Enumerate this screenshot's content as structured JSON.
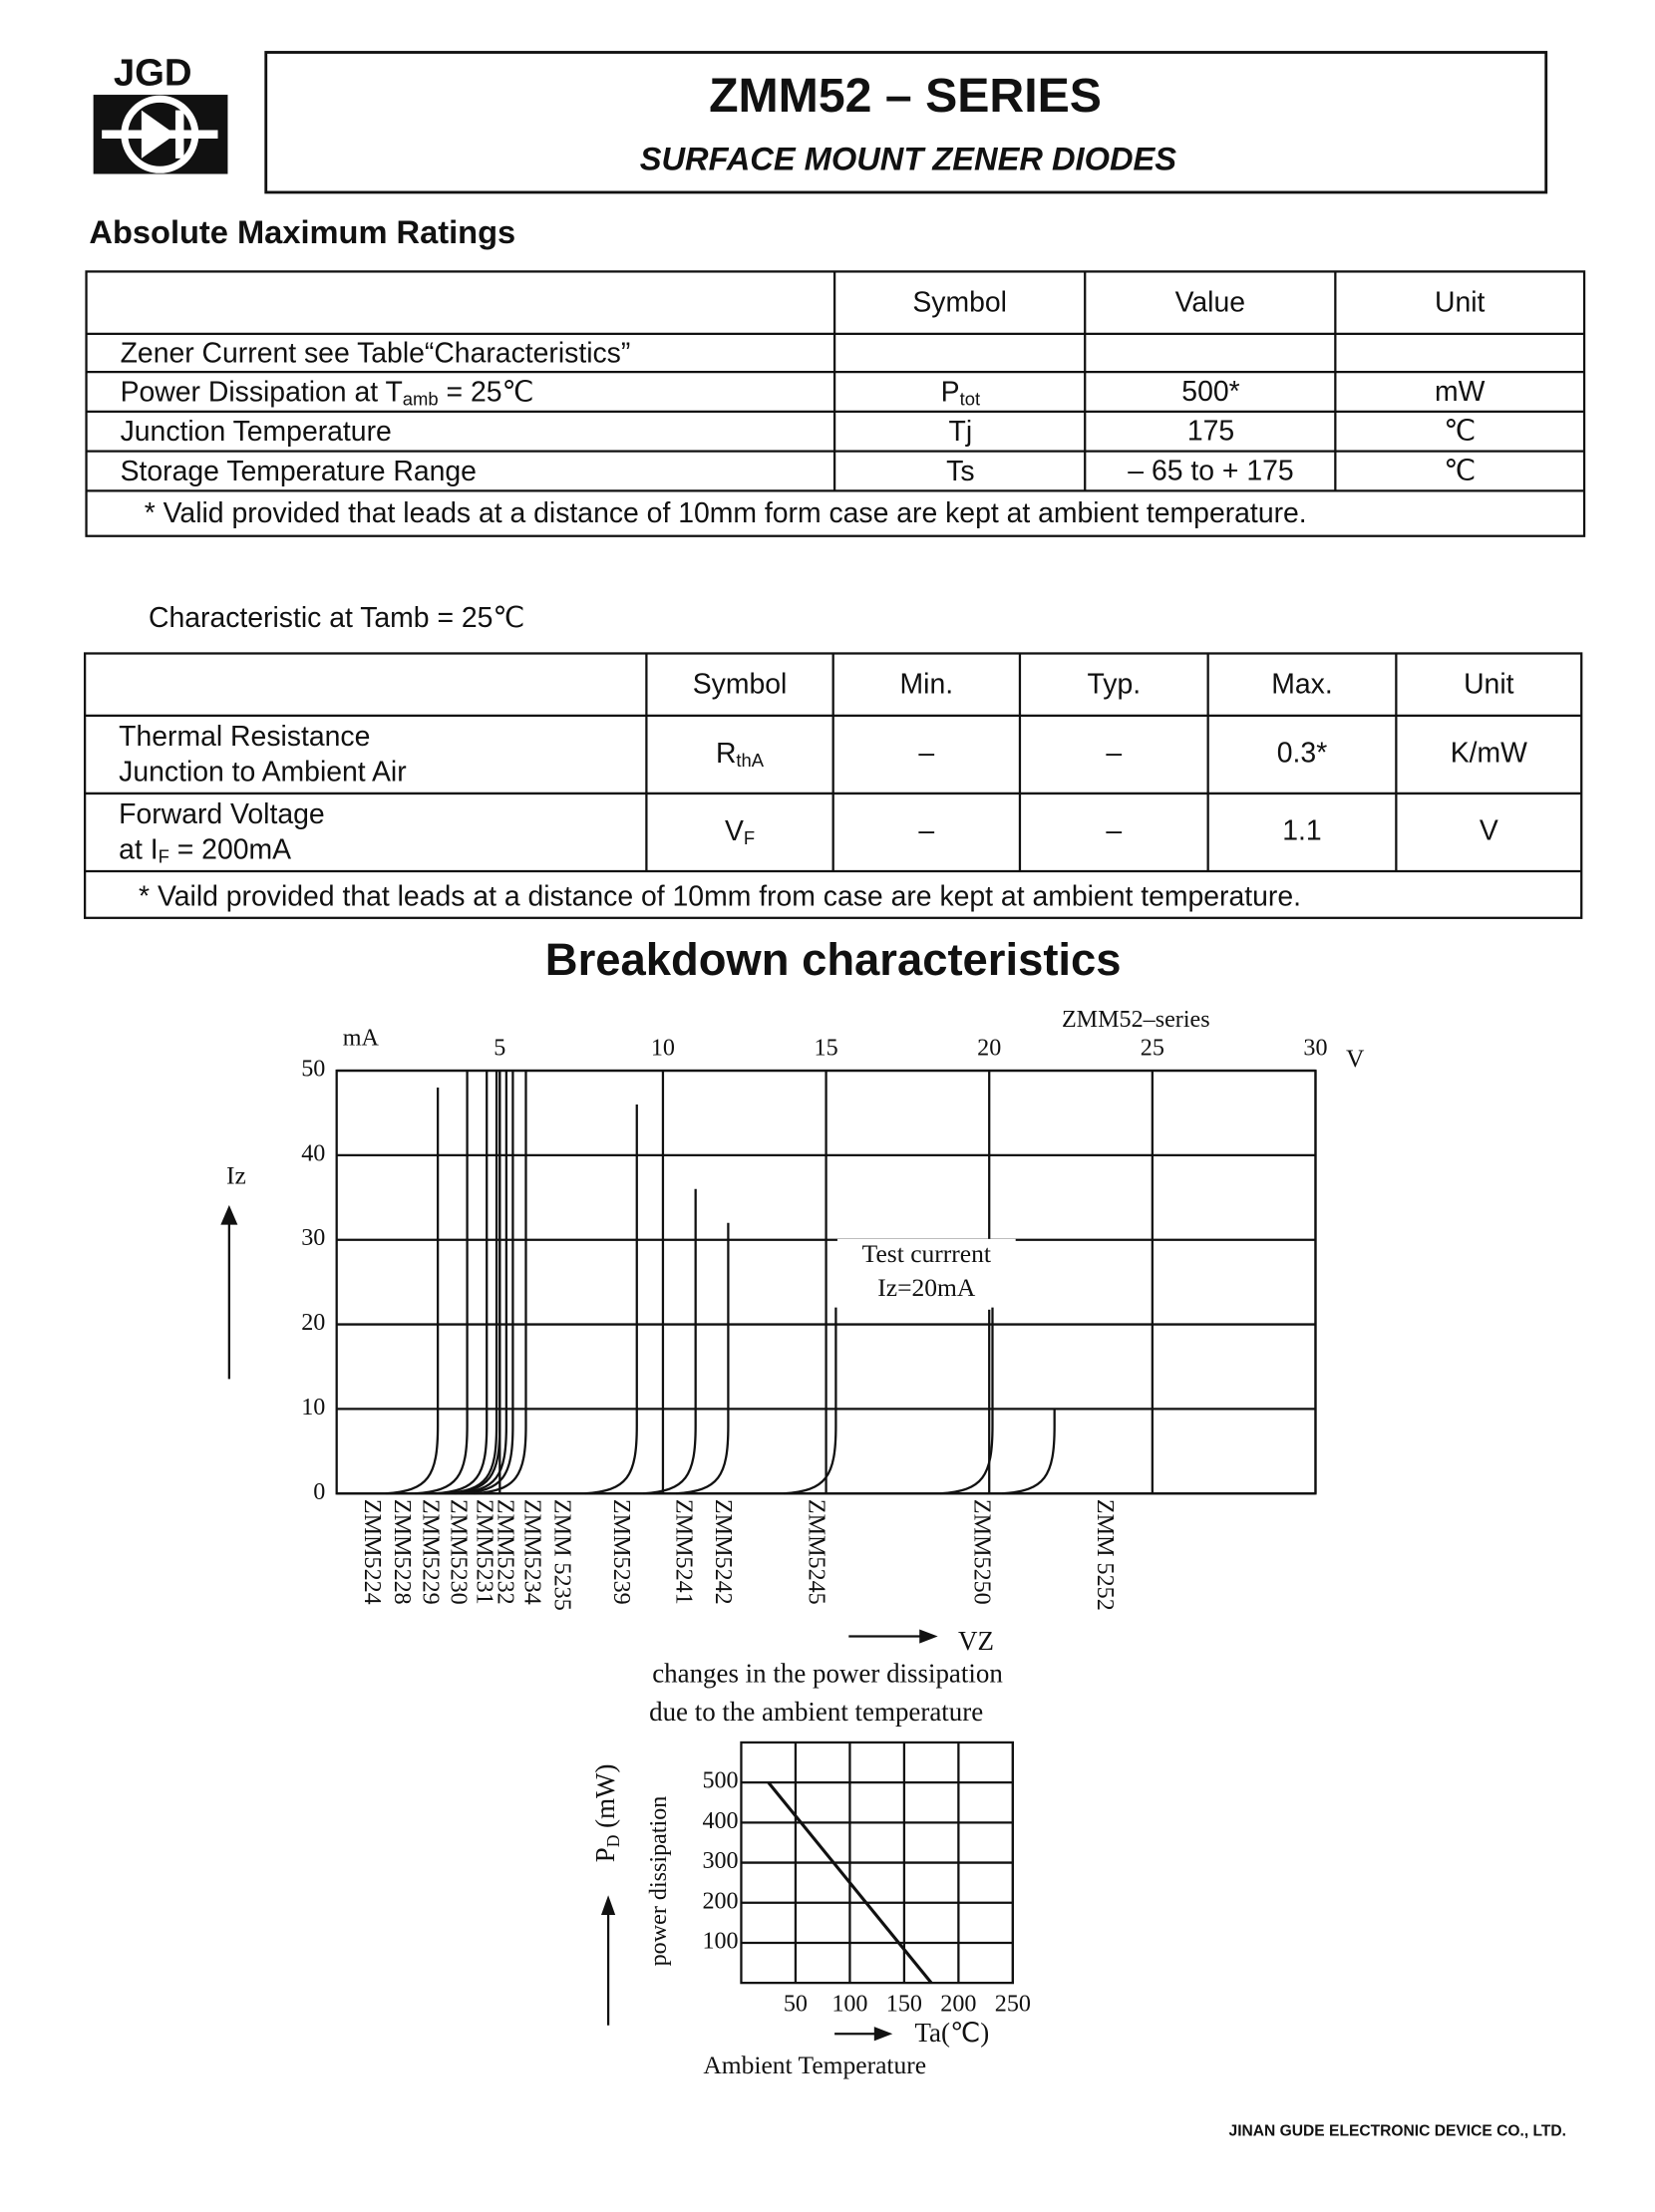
{
  "header": {
    "logo": "JGD",
    "title": "ZMM52 – SERIES",
    "subtitle": "SURFACE MOUNT ZENER DIODES"
  },
  "ratings": {
    "heading": "Absolute Maximum Ratings",
    "columns": [
      "Symbol",
      "Value",
      "Unit"
    ],
    "rows": [
      {
        "parameter": [
          "Zener Current see Table“Characteristics”"
        ]
      },
      {
        "parameter": [
          "Power Dissipation at T",
          "amb",
          " = 25℃"
        ],
        "symbol": [
          "P",
          "tot"
        ],
        "value": "500*",
        "unit": "mW"
      },
      {
        "parameter": [
          "Junction Temperature"
        ],
        "symbol": [
          "Tj"
        ],
        "value": "175",
        "unit": "℃"
      },
      {
        "parameter": [
          "Storage Temperature Range"
        ],
        "symbol": [
          "Ts"
        ],
        "value": "– 65 to + 175",
        "unit": "℃"
      }
    ],
    "footnote": "* Valid provided that leads at a distance of 10mm form case are kept at ambient temperature."
  },
  "characteristics": {
    "heading": "Characteristic at Tamb = 25℃",
    "columns": [
      "Symbol",
      "Min.",
      "Typ.",
      "Max.",
      "Unit"
    ],
    "rows": [
      {
        "parameter": [
          [
            "Thermal Resistance"
          ],
          [
            "Junction to Ambient Air"
          ]
        ],
        "symbol": [
          "R",
          "thA"
        ],
        "min": "–",
        "typ": "–",
        "max": "0.3*",
        "unit": "K/mW"
      },
      {
        "parameter": [
          [
            "Forward Voltage"
          ],
          [
            "at I",
            "F",
            " = 200mA"
          ]
        ],
        "symbol": [
          "V",
          "F"
        ],
        "min": "–",
        "typ": "–",
        "max": "1.1",
        "unit": "V"
      }
    ],
    "footnote": "* Vaild provided that leads at a distance of 10mm from case are kept at ambient temperature."
  },
  "section_title": "Breakdown characteristics",
  "breakdown_chart": {
    "type": "zener-curves",
    "series_label": "ZMM52–series",
    "y_unit": "mA",
    "x_unit": "V",
    "y_label": "Iz",
    "x_label": "VZ",
    "annotation": [
      "Test currrent",
      "Iz=20mA"
    ],
    "test_current": 20,
    "xlim": [
      0,
      30
    ],
    "xticks": [
      5,
      10,
      15,
      20,
      25,
      30
    ],
    "ylim": [
      0,
      50
    ],
    "yticks": [
      0,
      10,
      20,
      30,
      40,
      50
    ],
    "grid": true,
    "categories": [
      "ZMM5224",
      "ZMM5228",
      "ZMM5229",
      "ZMM5230",
      "ZMM5231",
      "ZMM5232",
      "ZMM5234",
      "ZMM 5235",
      "ZMM5239",
      "ZMM5241",
      "ZMM5242",
      "ZMM5245",
      "ZMM5250",
      "ZMM 5252"
    ],
    "x": [
      3.1,
      4.0,
      4.6,
      4.9,
      5.0,
      5.2,
      5.4,
      5.8,
      9.2,
      11.0,
      12.0,
      15.3,
      20.1,
      22.0
    ],
    "values": [
      48,
      50,
      50,
      50,
      50,
      50,
      50,
      50,
      46,
      36,
      32,
      22,
      22,
      10
    ]
  },
  "derating_chart": {
    "type": "line",
    "title": [
      "changes in the power dissipation",
      "due to the ambient temperature"
    ],
    "y_label": [
      "P",
      "D",
      " (mW)"
    ],
    "y_label_2": "power dissipation",
    "x_label": "Ta(℃)",
    "x_label_2": "Ambient Temperature",
    "xlim": [
      0,
      250
    ],
    "xticks": [
      50,
      100,
      150,
      200,
      250
    ],
    "ylim": [
      0,
      600
    ],
    "yticks": [
      100,
      200,
      300,
      400,
      500
    ],
    "grid": true,
    "x": [
      25,
      175
    ],
    "values": [
      500,
      0
    ]
  },
  "footer": "JINAN GUDE ELECTRONIC DEVICE CO., LTD."
}
